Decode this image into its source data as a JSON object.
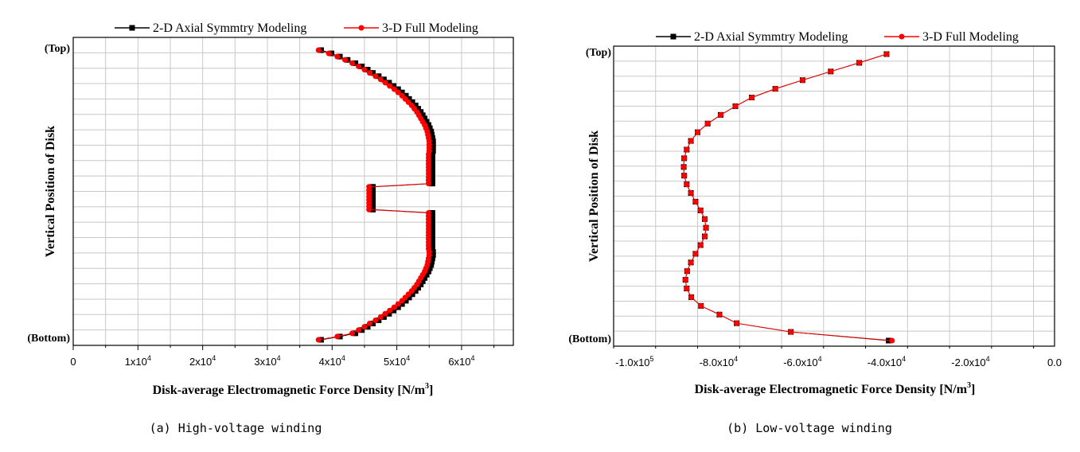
{
  "chart_data": [
    {
      "type": "line",
      "panel": "a",
      "caption": "(a) High-voltage winding",
      "xlabel": "Disk-average Electromagnetic  Force Density [N/m3]",
      "xlabel_main": "Disk-average Electromagnetic  Force Density [N/m",
      "xlabel_sup": "3",
      "xlabel_end": "]",
      "ylabel": "Vertical Position of Disk",
      "y_top_label": "(Top)",
      "y_bottom_label": "(Bottom)",
      "xlim": [
        0,
        68000
      ],
      "x_ticks": [
        {
          "value": 0,
          "label": "0",
          "sup": ""
        },
        {
          "value": 10000,
          "label": "1x10",
          "sup": "4"
        },
        {
          "value": 20000,
          "label": "2x10",
          "sup": "4"
        },
        {
          "value": 30000,
          "label": "3x10",
          "sup": "4"
        },
        {
          "value": 40000,
          "label": "4x10",
          "sup": "4"
        },
        {
          "value": 50000,
          "label": "5x10",
          "sup": "4"
        },
        {
          "value": 60000,
          "label": "6x10",
          "sup": "4"
        }
      ],
      "grid": true,
      "legend": "top-right",
      "positions": [
        1,
        2,
        3,
        4,
        5,
        6,
        7,
        8,
        9,
        10,
        11,
        12,
        13,
        14,
        15,
        16,
        17,
        18,
        19,
        20,
        21,
        22,
        23,
        24,
        25,
        26,
        27,
        28,
        29,
        30,
        31,
        32,
        33,
        34,
        35,
        36,
        37,
        38,
        39,
        40,
        41,
        42,
        43,
        44,
        45,
        46,
        47,
        48,
        49,
        50,
        51,
        52,
        53,
        54,
        55,
        56,
        57,
        58,
        59,
        60,
        61,
        62,
        63,
        64,
        65,
        66,
        67,
        68,
        69,
        70,
        71,
        72,
        73,
        74,
        75,
        76,
        77,
        78,
        79,
        80,
        81,
        82,
        83,
        84,
        85,
        86,
        87,
        88,
        89,
        90
      ],
      "series": [
        {
          "name": "2-D Axial Symmtry Modeling",
          "color": "#000000",
          "marker": "square",
          "values": [
            38300,
            39900,
            41200,
            42400,
            43600,
            44600,
            45500,
            46300,
            47200,
            48000,
            48800,
            49500,
            50200,
            50800,
            51400,
            51900,
            52400,
            52900,
            53300,
            53700,
            54000,
            54300,
            54600,
            54900,
            55100,
            55300,
            55400,
            55500,
            55600,
            55600,
            55600,
            55600,
            55500,
            55500,
            55500,
            55500,
            55500,
            55500,
            55500,
            55500,
            55500,
            55500,
            46300,
            46300,
            46300,
            46300,
            46300,
            46300,
            46300,
            46300,
            55500,
            55500,
            55500,
            55500,
            55500,
            55500,
            55500,
            55500,
            55500,
            55500,
            55500,
            55500,
            55600,
            55600,
            55500,
            55400,
            55300,
            55100,
            54900,
            54600,
            54300,
            54000,
            53700,
            53300,
            52900,
            52400,
            51900,
            51400,
            50800,
            50200,
            49500,
            48800,
            48000,
            47200,
            46300,
            45500,
            44600,
            43600,
            41200,
            38300
          ]
        },
        {
          "name": "3-D Full Modeling",
          "color": "#ff0000",
          "marker": "circle",
          "values": [
            37900,
            39500,
            40800,
            42000,
            43100,
            44100,
            45000,
            45800,
            46700,
            47500,
            48200,
            48900,
            49600,
            50200,
            50800,
            51300,
            51800,
            52300,
            52700,
            53100,
            53400,
            53700,
            54000,
            54300,
            54500,
            54700,
            54800,
            54900,
            55000,
            55000,
            55000,
            55000,
            54900,
            54900,
            54900,
            54900,
            54900,
            54900,
            54900,
            54900,
            54900,
            54900,
            45700,
            45700,
            45700,
            45700,
            45700,
            45700,
            45700,
            45700,
            54900,
            54900,
            54900,
            54900,
            54900,
            54900,
            54900,
            54900,
            54900,
            54900,
            54900,
            54900,
            55000,
            55000,
            54900,
            54800,
            54700,
            54500,
            54300,
            54000,
            53700,
            53400,
            53100,
            52700,
            52300,
            51800,
            51300,
            50800,
            50200,
            49600,
            48900,
            48200,
            47500,
            46700,
            45800,
            45000,
            44100,
            43100,
            40800,
            37900
          ]
        }
      ]
    },
    {
      "type": "line",
      "panel": "b",
      "caption": "(b) Low-voltage winding",
      "xlabel": "Disk-average Electromagnetic  Force Density [N/m3]",
      "xlabel_main": "Disk-average Electromagnetic  Force Density [N/m",
      "xlabel_sup": "3",
      "xlabel_end": "]",
      "ylabel": "Vertical Position of Disk",
      "y_top_label": "(Top)",
      "y_bottom_label": "(Bottom)",
      "xlim": [
        -105000,
        0
      ],
      "x_ticks": [
        {
          "value": -100000,
          "label": "-1.0x10",
          "sup": "5"
        },
        {
          "value": -80000,
          "label": "-8.0x10",
          "sup": "4"
        },
        {
          "value": -60000,
          "label": "-6.0x10",
          "sup": "4"
        },
        {
          "value": -40000,
          "label": "-4.0x10",
          "sup": "4"
        },
        {
          "value": -20000,
          "label": "-2.0x10",
          "sup": "4"
        },
        {
          "value": 0,
          "label": "0.0",
          "sup": ""
        }
      ],
      "grid": true,
      "legend": "top-right",
      "positions": [
        1,
        2,
        3,
        4,
        5,
        6,
        7,
        8,
        9,
        10,
        11,
        12,
        13,
        14,
        15,
        16,
        17,
        18,
        19,
        20,
        21,
        22,
        23,
        24,
        25,
        26,
        27,
        28,
        29,
        30,
        31,
        32,
        33,
        34
      ],
      "series": [
        {
          "name": "2-D Axial Symmtry Modeling",
          "color": "#000000",
          "marker": "square",
          "values": [
            -40000,
            -46500,
            -53300,
            -60000,
            -66500,
            -72100,
            -76000,
            -79500,
            -82600,
            -85000,
            -86600,
            -87600,
            -88200,
            -88300,
            -88200,
            -87600,
            -86600,
            -85500,
            -84300,
            -83300,
            -83000,
            -83300,
            -84300,
            -85500,
            -86600,
            -87500,
            -87900,
            -87600,
            -86500,
            -84200,
            -79800,
            -75700,
            -62800,
            -39500
          ]
        },
        {
          "name": "3-D Full Modeling",
          "color": "#ff0000",
          "marker": "circle",
          "values": [
            -40000,
            -46500,
            -53300,
            -60000,
            -66500,
            -72100,
            -76000,
            -79500,
            -82600,
            -85000,
            -86600,
            -87600,
            -88200,
            -88300,
            -88200,
            -87600,
            -86600,
            -85500,
            -84300,
            -83300,
            -83000,
            -83300,
            -84300,
            -85500,
            -86600,
            -87500,
            -87900,
            -87600,
            -86500,
            -84200,
            -79800,
            -75700,
            -62800,
            -38700
          ]
        }
      ]
    }
  ]
}
